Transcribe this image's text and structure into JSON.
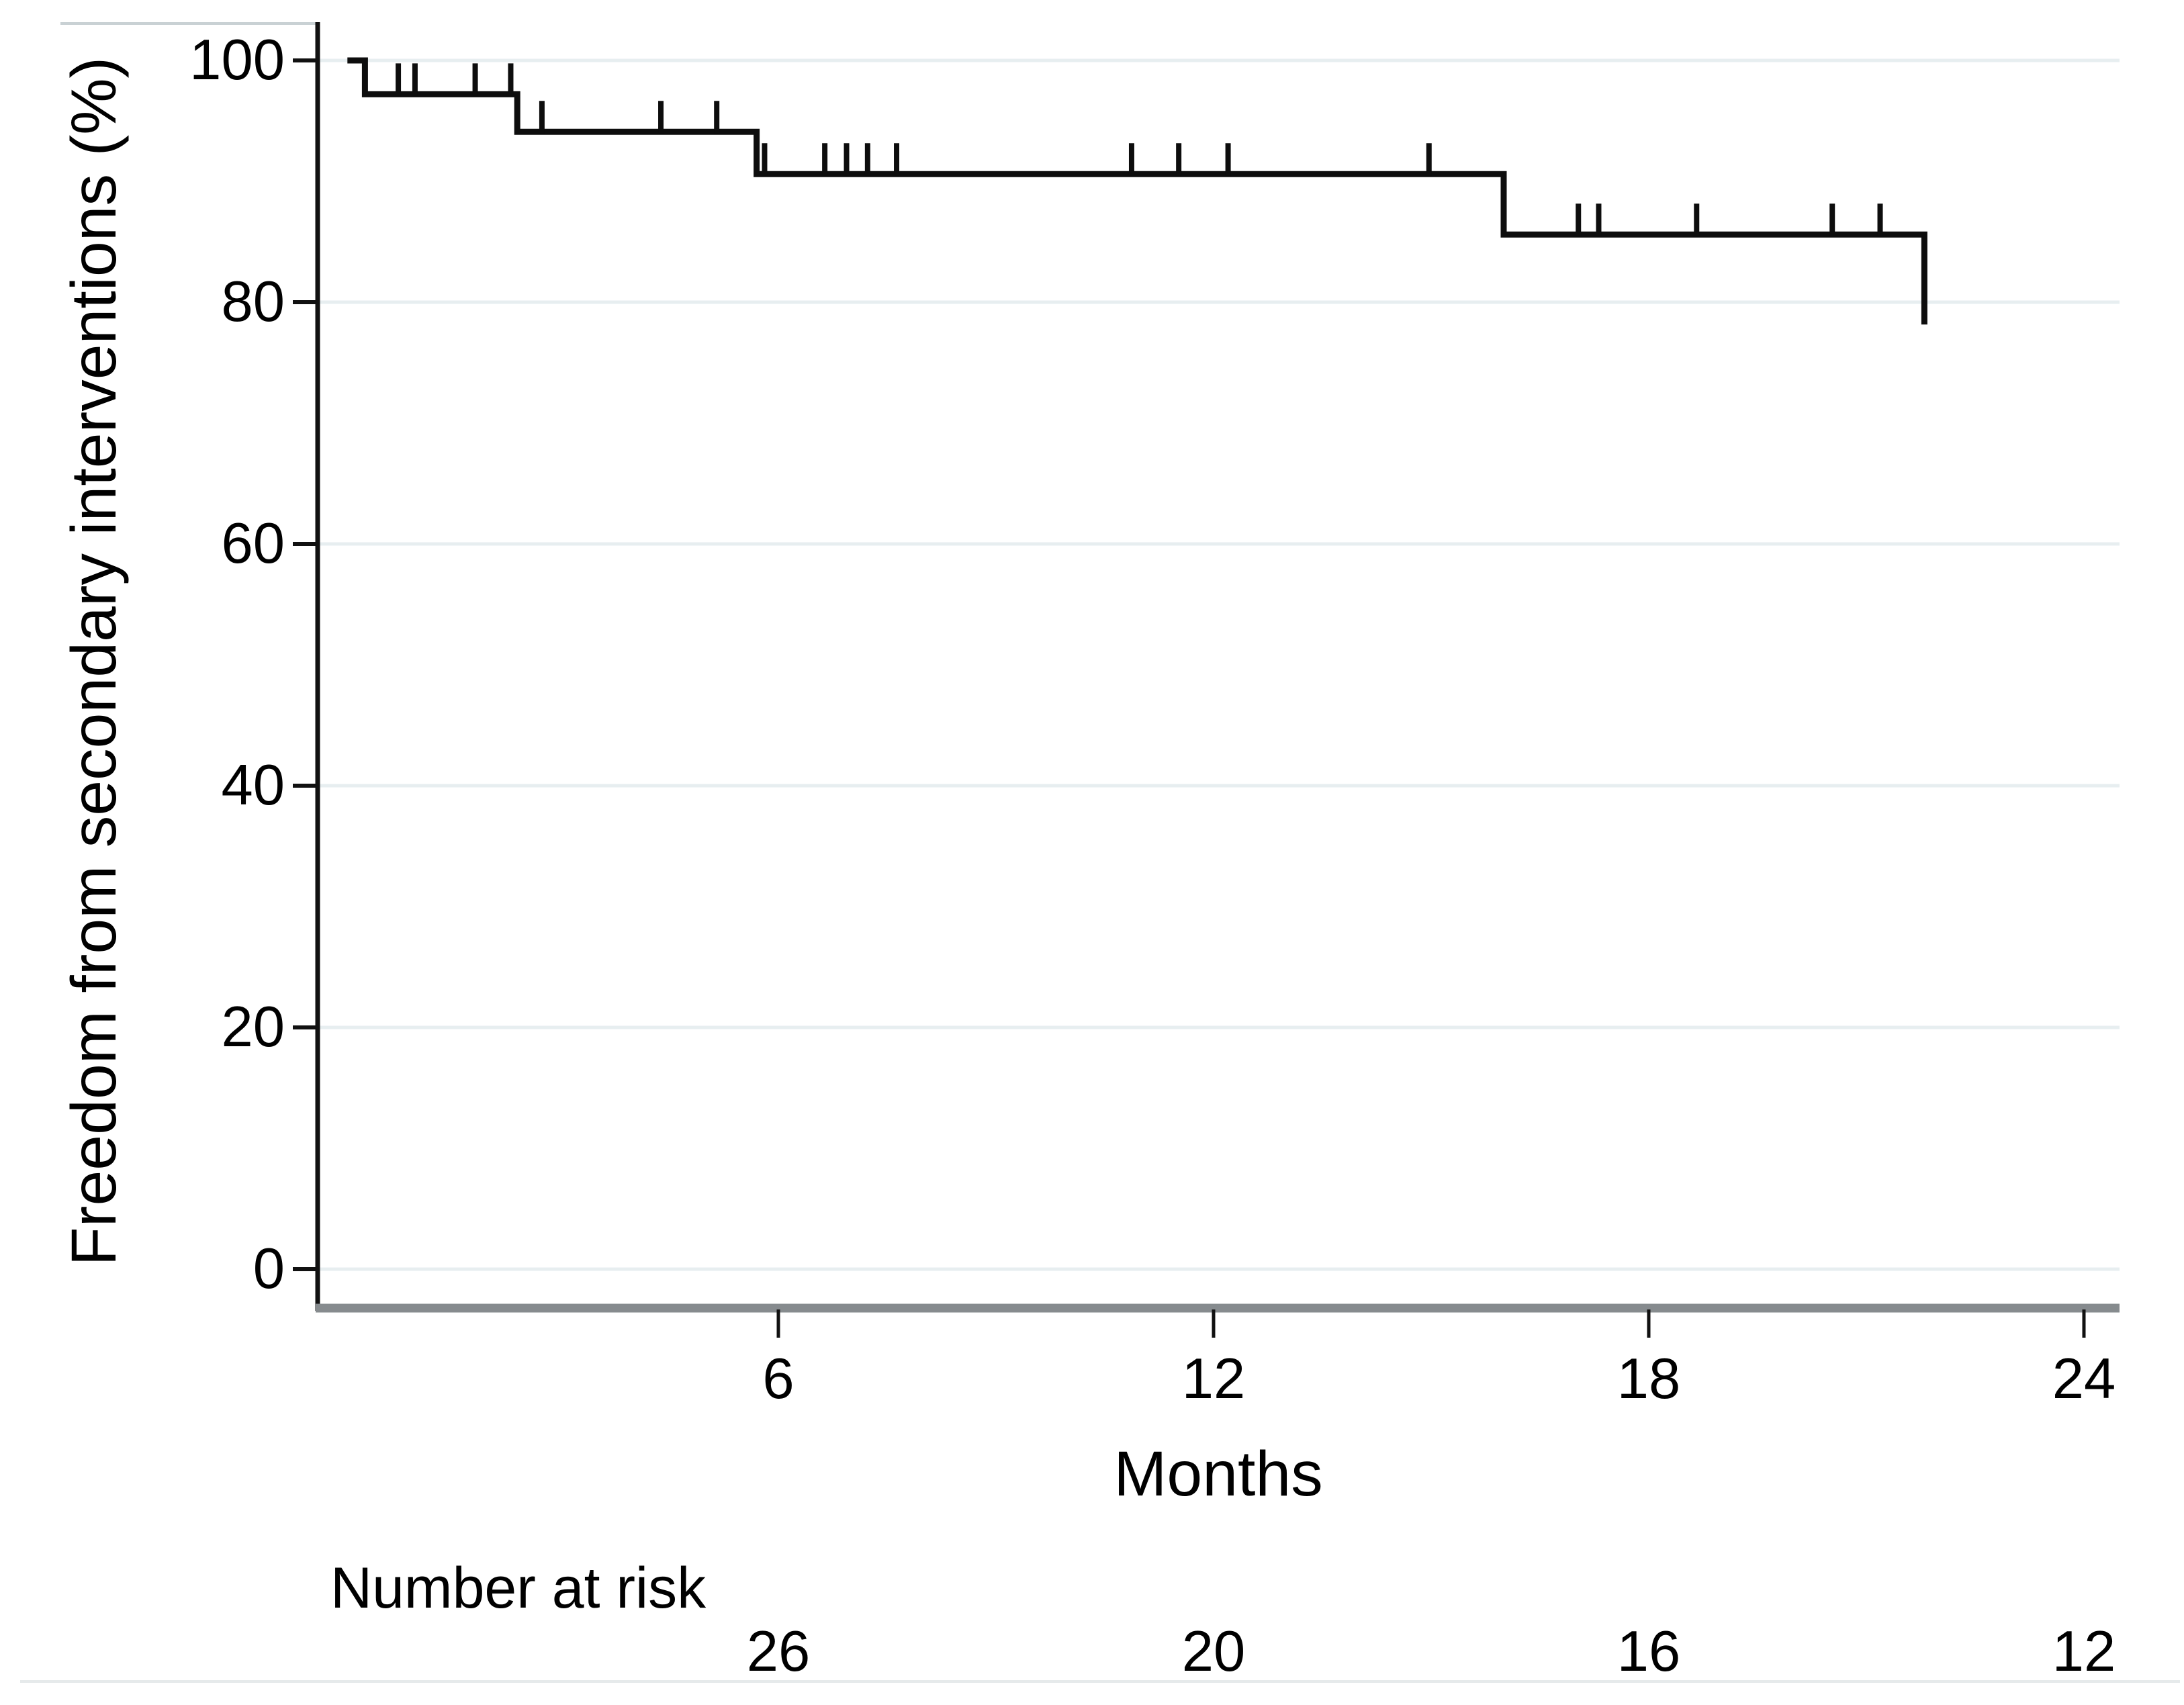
{
  "figure": {
    "y_axis": {
      "title": "Freedom from secondary interventions (%)",
      "ticks": [
        0,
        20,
        40,
        60,
        80,
        100
      ]
    },
    "x_axis": {
      "title": "Months",
      "ticks": [
        6,
        12,
        18,
        24
      ]
    },
    "number_at_risk": {
      "label": "Number at risk",
      "times": [
        6,
        12,
        18,
        24
      ],
      "counts": [
        26,
        20,
        16,
        12
      ]
    }
  },
  "chart_data": {
    "type": "line",
    "subtype": "kaplan_meier_step",
    "title": "",
    "xlabel": "Months",
    "ylabel": "Freedom from secondary interventions (%)",
    "xlim": [
      -0.35,
      24.5
    ],
    "ylim": [
      -3,
      103
    ],
    "xticks": [
      6,
      12,
      18,
      24
    ],
    "yticks": [
      0,
      20,
      40,
      60,
      80,
      100
    ],
    "grid": "horizontal-light",
    "legend": "none",
    "series": [
      {
        "name": "Freedom from secondary interventions",
        "steps": [
          {
            "month": 0.1,
            "percent": 100
          },
          {
            "month": 0.3,
            "percent": 97.2
          },
          {
            "month": 2.4,
            "percent": 94.1
          },
          {
            "month": 5.7,
            "percent": 90.6
          },
          {
            "month": 16.0,
            "percent": 85.6
          },
          {
            "month": 21.8,
            "percent": 78.4
          }
        ],
        "censor_marks": [
          {
            "month": 0.76,
            "percent": 97.2
          },
          {
            "month": 0.99,
            "percent": 97.2
          },
          {
            "month": 1.82,
            "percent": 97.2
          },
          {
            "month": 2.31,
            "percent": 97.2
          },
          {
            "month": 2.74,
            "percent": 94.1
          },
          {
            "month": 4.38,
            "percent": 94.1
          },
          {
            "month": 5.15,
            "percent": 94.1
          },
          {
            "month": 5.81,
            "percent": 90.6
          },
          {
            "month": 6.64,
            "percent": 90.6
          },
          {
            "month": 6.94,
            "percent": 90.6
          },
          {
            "month": 7.23,
            "percent": 90.6
          },
          {
            "month": 7.63,
            "percent": 90.6
          },
          {
            "month": 10.87,
            "percent": 90.6
          },
          {
            "month": 11.52,
            "percent": 90.6
          },
          {
            "month": 12.2,
            "percent": 90.6
          },
          {
            "month": 14.97,
            "percent": 90.6
          },
          {
            "month": 17.03,
            "percent": 85.6
          },
          {
            "month": 17.31,
            "percent": 85.6
          },
          {
            "month": 18.66,
            "percent": 85.6
          },
          {
            "month": 20.53,
            "percent": 85.6
          },
          {
            "month": 21.19,
            "percent": 85.6
          }
        ]
      }
    ],
    "number_at_risk": {
      "label": "Number at risk",
      "times": [
        6,
        12,
        18,
        24
      ],
      "counts": [
        26,
        20,
        16,
        12
      ]
    }
  },
  "colors": {
    "curve": "#0d0d0d",
    "gridline": "#e7eef0",
    "x_axis_line": "#868b8e",
    "y_axis_line": "#111111",
    "tick": "#111111",
    "text": "#000000",
    "top_rule": "#c9d1d4",
    "bottom_rule": "#e6eaeb"
  }
}
